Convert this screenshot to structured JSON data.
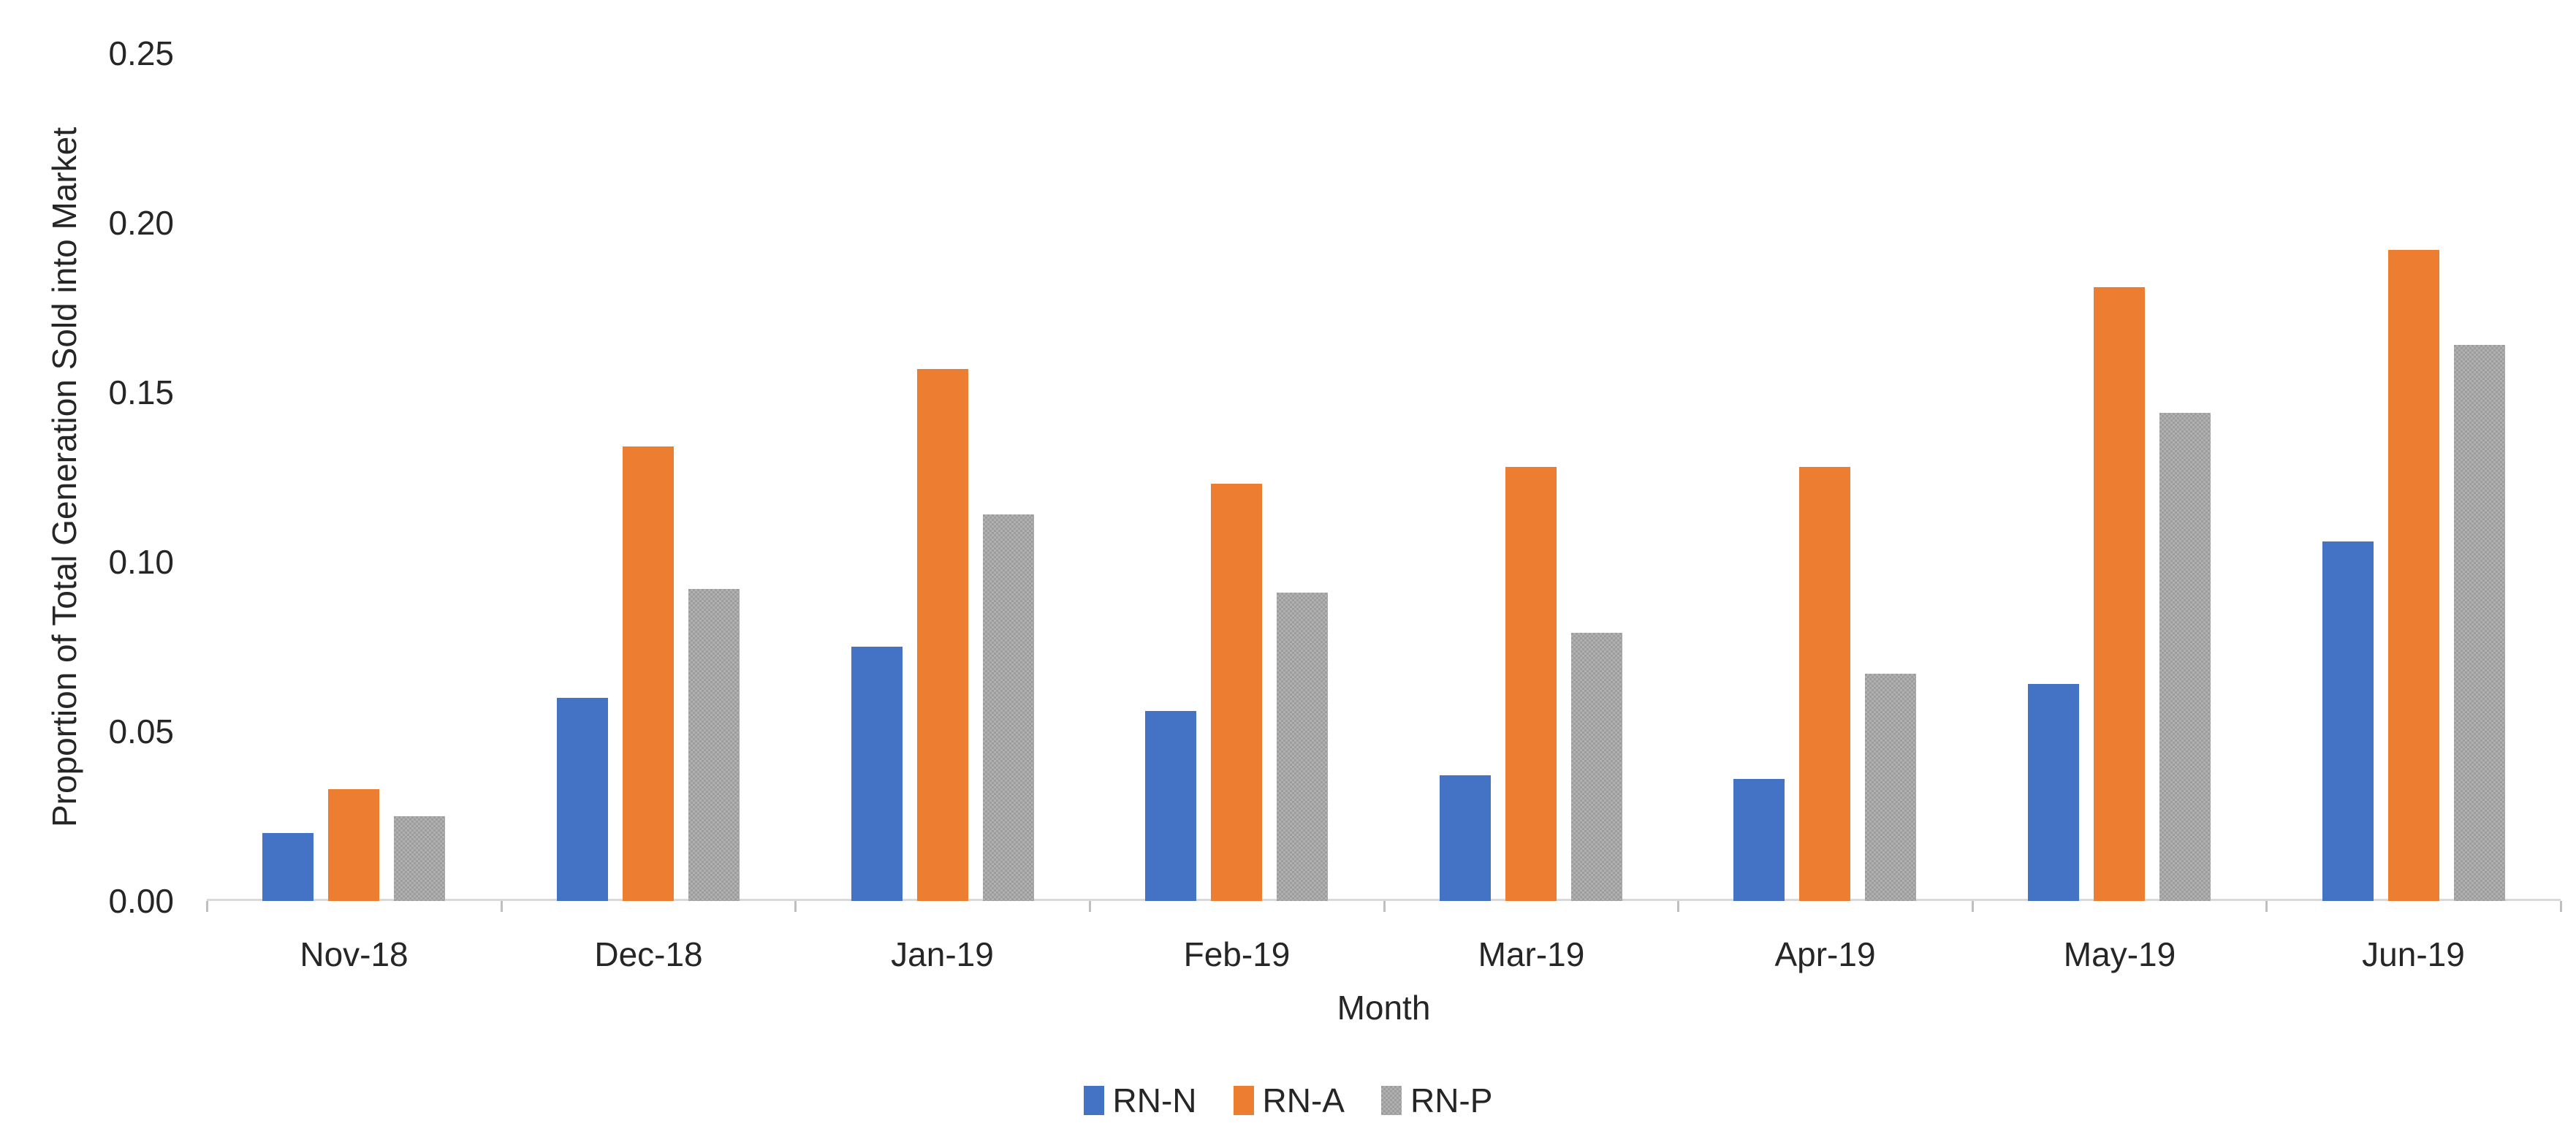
{
  "chart_data": {
    "type": "bar",
    "title": "",
    "xlabel": "Month",
    "ylabel": "Proportion of Total Generation Sold into Market",
    "ylim": [
      0,
      0.25
    ],
    "y_ticks": [
      "0.00",
      "0.05",
      "0.10",
      "0.15",
      "0.20",
      "0.25"
    ],
    "grid": false,
    "legend_position": "bottom",
    "categories": [
      "Nov-18",
      "Dec-18",
      "Jan-19",
      "Feb-19",
      "Mar-19",
      "Apr-19",
      "May-19",
      "Jun-19"
    ],
    "series": [
      {
        "name": "RN-N",
        "color": "#4472C4",
        "texture": "solid",
        "values": [
          0.02,
          0.06,
          0.075,
          0.056,
          0.037,
          0.036,
          0.064,
          0.106
        ]
      },
      {
        "name": "RN-A",
        "color": "#ED7D31",
        "texture": "solid",
        "values": [
          0.033,
          0.134,
          0.157,
          0.123,
          0.128,
          0.128,
          0.181,
          0.192
        ]
      },
      {
        "name": "RN-P",
        "color": "#A5A5A5",
        "texture": "checker",
        "values": [
          0.025,
          0.092,
          0.114,
          0.091,
          0.079,
          0.067,
          0.144,
          0.164
        ]
      }
    ]
  },
  "colors": {
    "axis_line": "#D9D9D9",
    "tick_mark": "#BFBFBF",
    "text": "#262626",
    "background": "#FFFFFF"
  }
}
